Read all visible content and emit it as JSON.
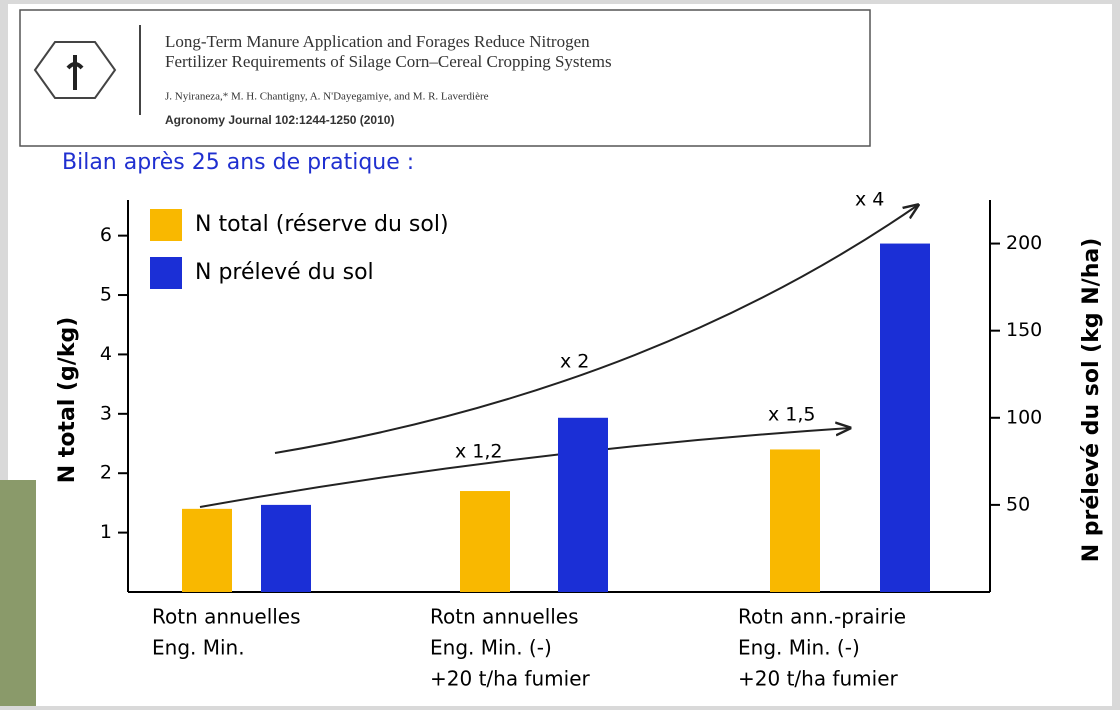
{
  "paper": {
    "title_lines": [
      "Long-Term Manure Application and Forages Reduce Nitrogen",
      "Fertilizer Requirements of Silage Corn–Cereal Cropping Systems"
    ],
    "authors": "J. Nyiraneza,* M. H. Chantigny, A. N'Dayegamiye, and M. R. Laverdière",
    "journal": "Agronomy Journal 102:1244-1250 (2010)"
  },
  "chart_data": {
    "type": "bar",
    "title": "Bilan après 25 ans de pratique :",
    "ylabel": "N total (g/kg)",
    "y2label": "N prélevé du sol (kg N/ha)",
    "categories": [
      [
        "Rotn annuelles",
        "Eng. Min."
      ],
      [
        "Rotn annuelles",
        "Eng. Min. (-)",
        "+20 t/ha fumier"
      ],
      [
        "Rotn ann.-prairie",
        "Eng. Min. (-)",
        "+20 t/ha fumier"
      ]
    ],
    "series": [
      {
        "name": "N total (réserve du sol)",
        "color": "#f9b800",
        "values": [
          1.4,
          1.7,
          2.4
        ]
      },
      {
        "name": "N prélevé du sol",
        "color": "#1b2fd6",
        "values": [
          50,
          100,
          200
        ],
        "axis": "y2"
      }
    ],
    "ylim": [
      0,
      6.6
    ],
    "yticks": [
      1,
      2,
      3,
      4,
      5,
      6
    ],
    "y2lim": [
      0,
      225
    ],
    "y2ticks": [
      50,
      100,
      150,
      200
    ],
    "legend": "upper left",
    "annotations": [
      "x 4",
      "x 2",
      "x 1,5",
      "x 1,2"
    ]
  }
}
